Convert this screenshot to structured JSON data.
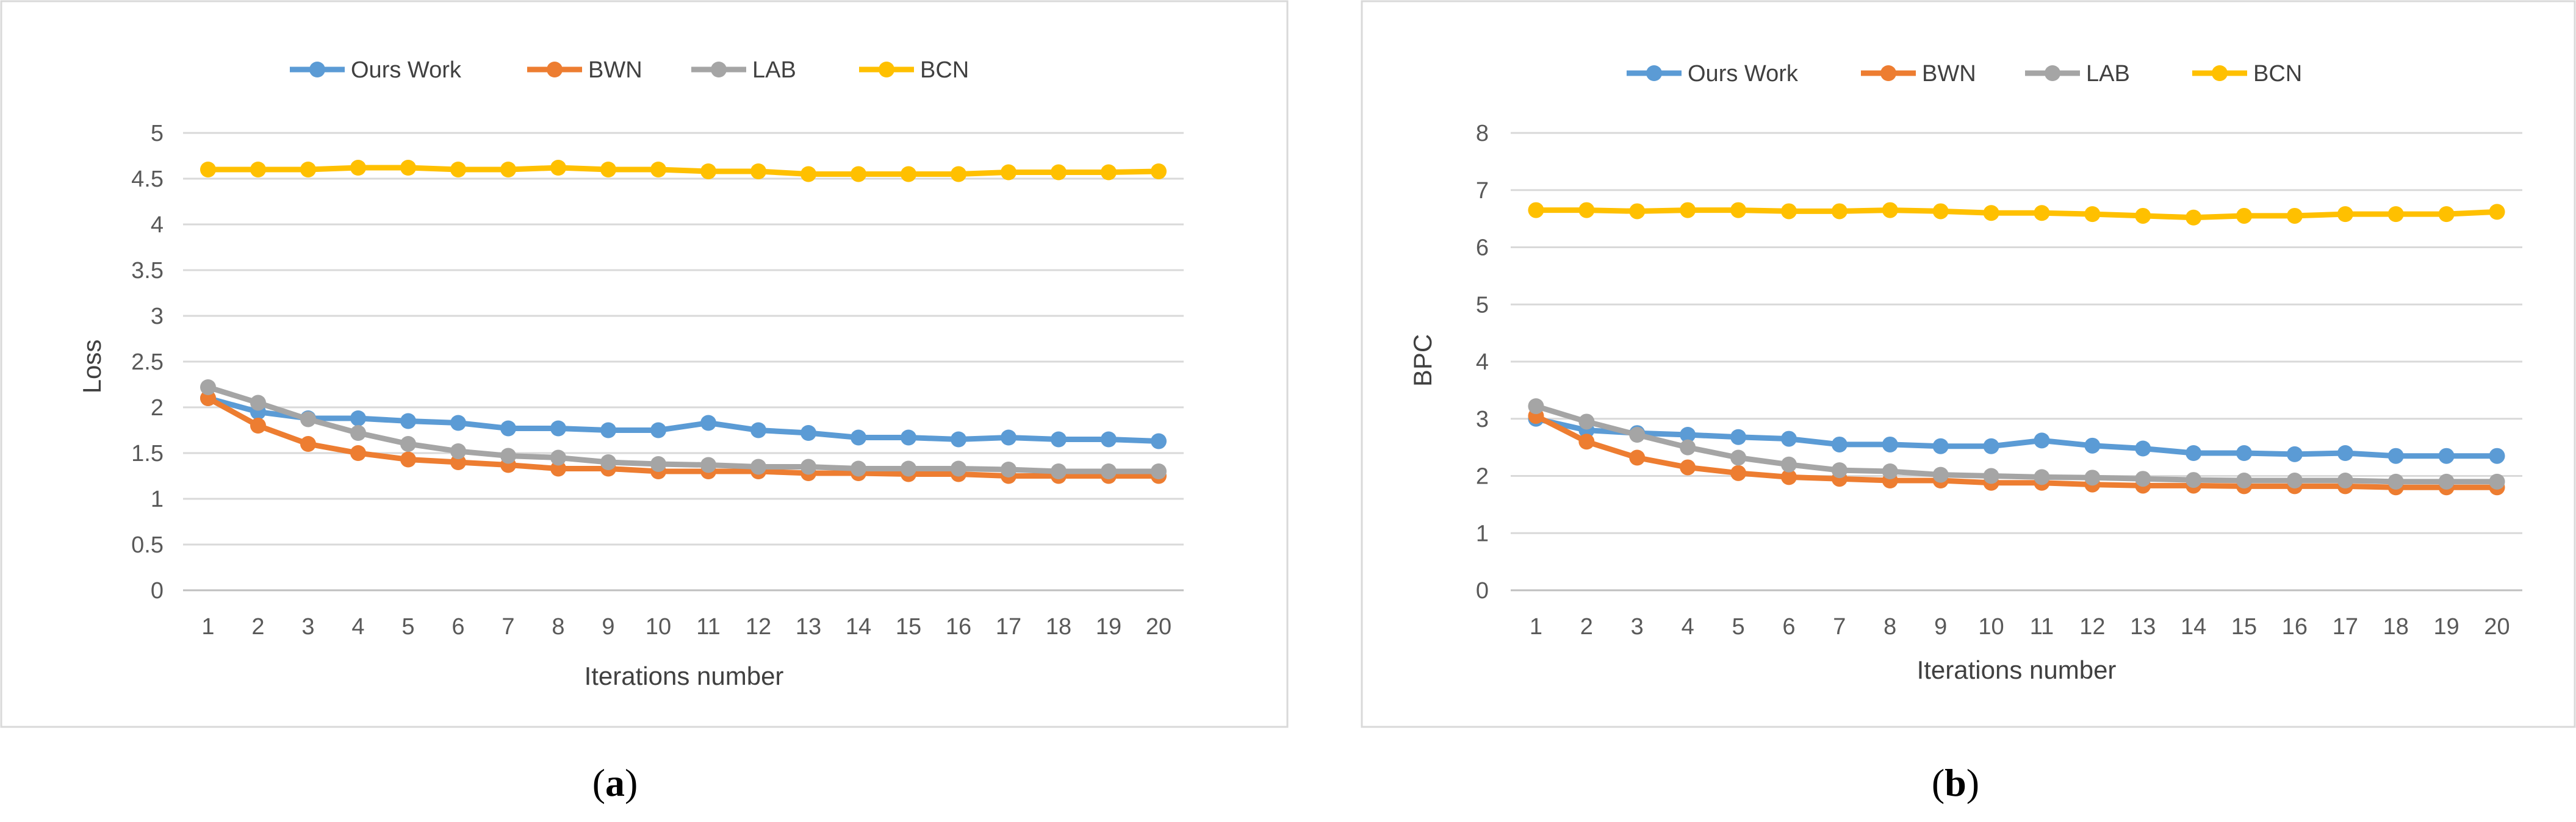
{
  "chart_data": [
    {
      "type": "line",
      "panel_label": "a",
      "title": "",
      "xlabel": "Iterations number",
      "ylabel": "Loss",
      "x": [
        1,
        2,
        3,
        4,
        5,
        6,
        7,
        8,
        9,
        10,
        11,
        12,
        13,
        14,
        15,
        16,
        17,
        18,
        19,
        20
      ],
      "ylim": [
        0,
        5
      ],
      "yticks": [
        "0",
        "0.5",
        "1",
        "1.5",
        "2",
        "2.5",
        "3",
        "3.5",
        "4",
        "4.5",
        "5"
      ],
      "ytick_values": [
        0,
        0.5,
        1,
        1.5,
        2,
        2.5,
        3,
        3.5,
        4,
        4.5,
        5
      ],
      "grid": true,
      "legend_position": "top-center",
      "series": [
        {
          "name": "Ours Work",
          "color": "#5b9bd5",
          "values": [
            2.1,
            1.95,
            1.88,
            1.88,
            1.85,
            1.83,
            1.77,
            1.77,
            1.75,
            1.75,
            1.83,
            1.75,
            1.72,
            1.67,
            1.67,
            1.65,
            1.67,
            1.65,
            1.65,
            1.63
          ]
        },
        {
          "name": "BWN",
          "color": "#ed7d31",
          "values": [
            2.1,
            1.8,
            1.6,
            1.5,
            1.43,
            1.4,
            1.37,
            1.33,
            1.33,
            1.3,
            1.3,
            1.3,
            1.28,
            1.28,
            1.27,
            1.27,
            1.25,
            1.25,
            1.25,
            1.25
          ]
        },
        {
          "name": "LAB",
          "color": "#a5a5a5",
          "values": [
            2.22,
            2.05,
            1.87,
            1.72,
            1.6,
            1.52,
            1.47,
            1.45,
            1.4,
            1.38,
            1.37,
            1.35,
            1.35,
            1.33,
            1.33,
            1.33,
            1.32,
            1.3,
            1.3,
            1.3
          ]
        },
        {
          "name": "BCN",
          "color": "#ffc000",
          "values": [
            4.6,
            4.6,
            4.6,
            4.62,
            4.62,
            4.6,
            4.6,
            4.62,
            4.6,
            4.6,
            4.58,
            4.58,
            4.55,
            4.55,
            4.55,
            4.55,
            4.57,
            4.57,
            4.57,
            4.58
          ]
        }
      ]
    },
    {
      "type": "line",
      "panel_label": "b",
      "title": "",
      "xlabel": "Iterations number",
      "ylabel": "BPC",
      "x": [
        1,
        2,
        3,
        4,
        5,
        6,
        7,
        8,
        9,
        10,
        11,
        12,
        13,
        14,
        15,
        16,
        17,
        18,
        19,
        20
      ],
      "ylim": [
        0,
        8
      ],
      "yticks": [
        "0",
        "1",
        "2",
        "3",
        "4",
        "5",
        "6",
        "7",
        "8"
      ],
      "ytick_values": [
        0,
        1,
        2,
        3,
        4,
        5,
        6,
        7,
        8
      ],
      "grid": true,
      "legend_position": "top-center",
      "series": [
        {
          "name": "Ours Work",
          "color": "#5b9bd5",
          "values": [
            3.0,
            2.8,
            2.75,
            2.72,
            2.68,
            2.65,
            2.55,
            2.55,
            2.52,
            2.52,
            2.62,
            2.53,
            2.48,
            2.4,
            2.4,
            2.38,
            2.4,
            2.35,
            2.35,
            2.35
          ]
        },
        {
          "name": "BWN",
          "color": "#ed7d31",
          "values": [
            3.05,
            2.6,
            2.32,
            2.15,
            2.05,
            1.98,
            1.95,
            1.92,
            1.92,
            1.88,
            1.88,
            1.85,
            1.83,
            1.83,
            1.82,
            1.82,
            1.82,
            1.8,
            1.8,
            1.8
          ]
        },
        {
          "name": "LAB",
          "color": "#a5a5a5",
          "values": [
            3.22,
            2.95,
            2.72,
            2.5,
            2.32,
            2.2,
            2.1,
            2.08,
            2.02,
            2.0,
            1.98,
            1.97,
            1.95,
            1.93,
            1.92,
            1.92,
            1.92,
            1.9,
            1.9,
            1.9
          ]
        },
        {
          "name": "BCN",
          "color": "#ffc000",
          "values": [
            6.65,
            6.65,
            6.63,
            6.65,
            6.65,
            6.63,
            6.63,
            6.65,
            6.63,
            6.6,
            6.6,
            6.58,
            6.55,
            6.52,
            6.55,
            6.55,
            6.58,
            6.58,
            6.58,
            6.62
          ]
        }
      ]
    }
  ]
}
